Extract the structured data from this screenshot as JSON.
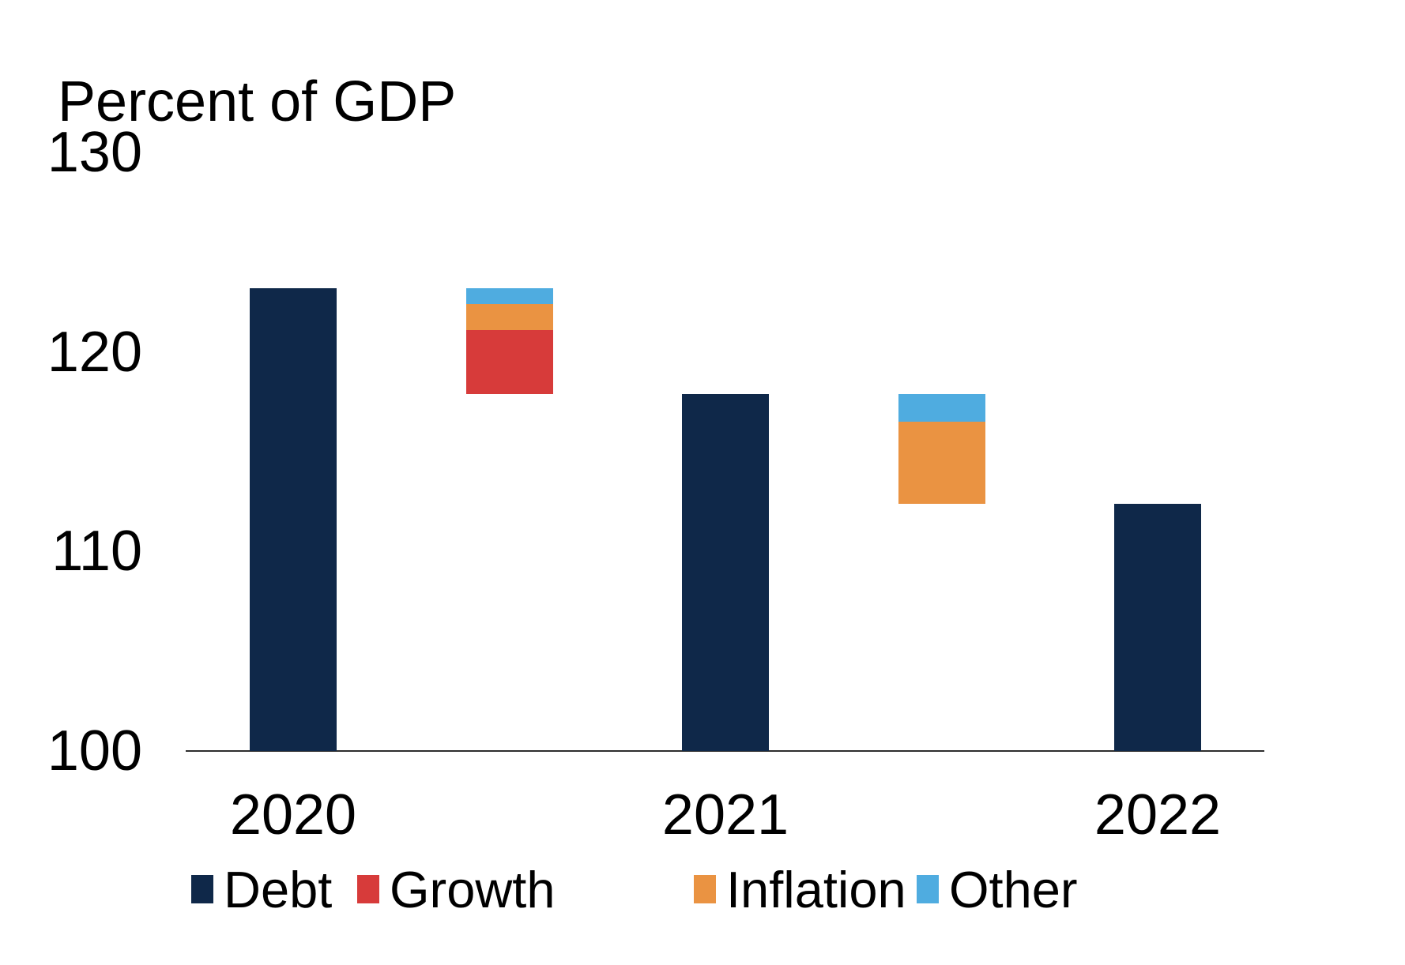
{
  "chart_data": {
    "type": "bar",
    "subtype": "level-bars-with-decomposition-bridges",
    "title": "Percent of GDP",
    "ylabel": "Percent of GDP",
    "ylim": [
      100,
      130
    ],
    "yticks": [
      130,
      120,
      110,
      100
    ],
    "grid": false,
    "legend_position": "bottom",
    "categories": [
      "2020",
      "2021",
      "2022"
    ],
    "series": [
      {
        "name": "Debt",
        "values": [
          123.2,
          117.9,
          112.4
        ]
      }
    ],
    "bridges": [
      {
        "from_category": "2020",
        "to_category": "2021",
        "segments": [
          {
            "name": "Growth",
            "value": 3.2
          },
          {
            "name": "Inflation",
            "value": 1.3
          },
          {
            "name": "Other",
            "value": 0.8
          }
        ]
      },
      {
        "from_category": "2021",
        "to_category": "2022",
        "segments": [
          {
            "name": "Inflation",
            "value": 4.1
          },
          {
            "name": "Other",
            "value": 1.4
          }
        ]
      }
    ],
    "legend": [
      {
        "label": "Debt",
        "color": "#0f2849"
      },
      {
        "label": "Growth",
        "color": "#d73b3a"
      },
      {
        "label": "Inflation",
        "color": "#ea9342"
      },
      {
        "label": "Other",
        "color": "#4face0"
      }
    ],
    "colors": {
      "axis_line": "#2e2e2e",
      "text": "#000000",
      "background": "#ffffff"
    }
  }
}
